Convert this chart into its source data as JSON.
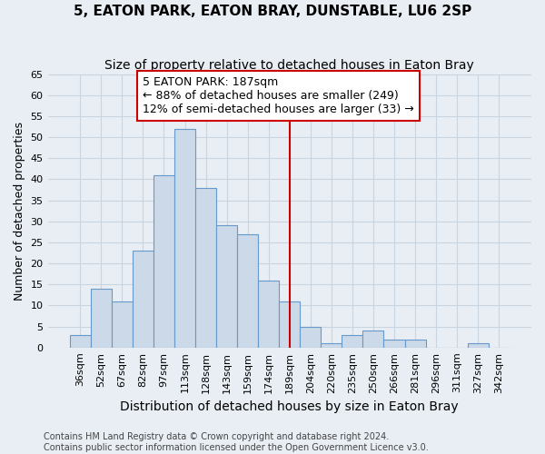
{
  "title": "5, EATON PARK, EATON BRAY, DUNSTABLE, LU6 2SP",
  "subtitle": "Size of property relative to detached houses in Eaton Bray",
  "xlabel": "Distribution of detached houses by size in Eaton Bray",
  "ylabel": "Number of detached properties",
  "categories": [
    "36sqm",
    "52sqm",
    "67sqm",
    "82sqm",
    "97sqm",
    "113sqm",
    "128sqm",
    "143sqm",
    "159sqm",
    "174sqm",
    "189sqm",
    "204sqm",
    "220sqm",
    "235sqm",
    "250sqm",
    "266sqm",
    "281sqm",
    "296sqm",
    "311sqm",
    "327sqm",
    "342sqm"
  ],
  "values": [
    3,
    14,
    11,
    23,
    41,
    52,
    38,
    29,
    27,
    16,
    11,
    5,
    1,
    3,
    4,
    2,
    2,
    0,
    0,
    1,
    0
  ],
  "bar_color": "#ccd9e8",
  "bar_edge_color": "#6699cc",
  "grid_color": "#c8d4e0",
  "bg_color": "#e8eef4",
  "vline_x_index": 10,
  "annotation_text1": "5 EATON PARK: 187sqm",
  "annotation_text2": "← 88% of detached houses are smaller (249)",
  "annotation_text3": "12% of semi-detached houses are larger (33) →",
  "annotation_box_color": "#ffffff",
  "annotation_box_edge": "#cc0000",
  "vline_color": "#cc0000",
  "ylim": [
    0,
    65
  ],
  "yticks": [
    0,
    5,
    10,
    15,
    20,
    25,
    30,
    35,
    40,
    45,
    50,
    55,
    60,
    65
  ],
  "footnote1": "Contains HM Land Registry data © Crown copyright and database right 2024.",
  "footnote2": "Contains public sector information licensed under the Open Government Licence v3.0.",
  "title_fontsize": 11,
  "subtitle_fontsize": 10,
  "xlabel_fontsize": 10,
  "ylabel_fontsize": 9,
  "tick_fontsize": 8,
  "annot_fontsize": 9,
  "footnote_fontsize": 7
}
